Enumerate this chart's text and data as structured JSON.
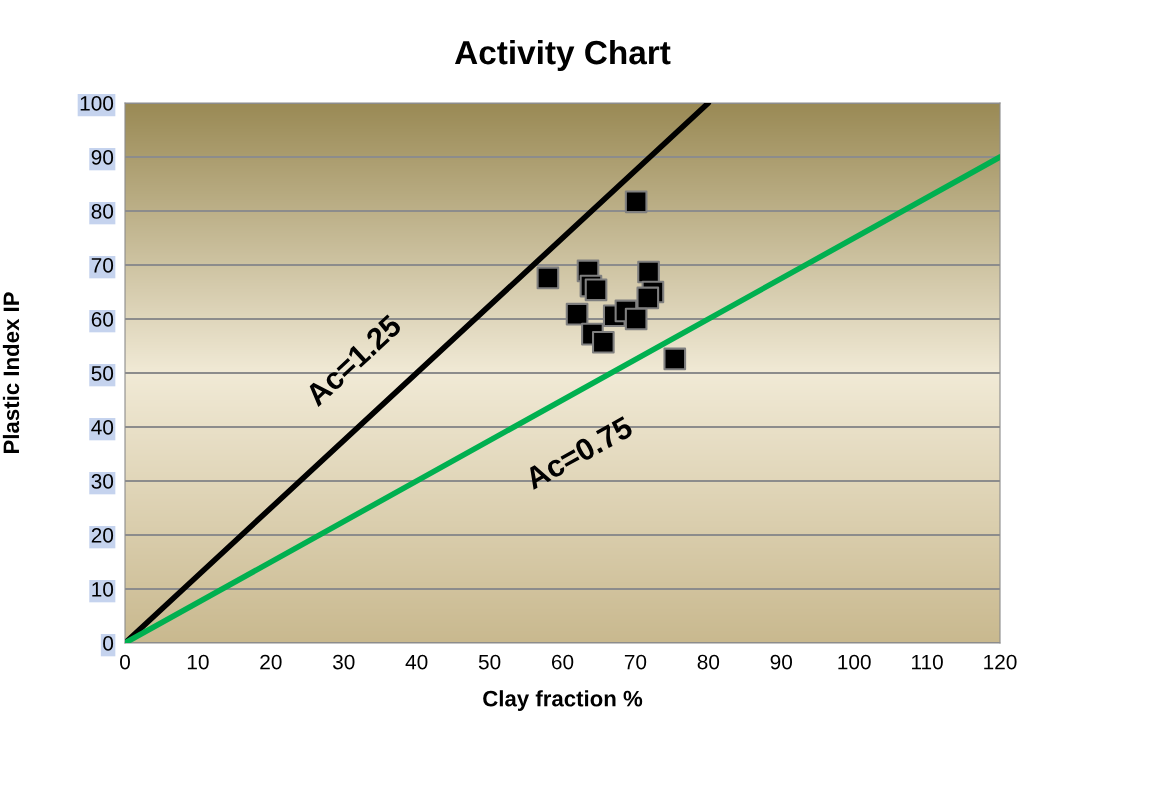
{
  "chart_data": {
    "type": "scatter",
    "title": "Activity Chart",
    "xlabel": "Clay fraction %",
    "ylabel": "Plastic Index IP",
    "xlim": [
      0,
      120
    ],
    "xticks": [
      0,
      10,
      20,
      30,
      40,
      50,
      60,
      70,
      80,
      90,
      100,
      110,
      120
    ],
    "ylim": [
      0,
      100
    ],
    "yticks": [
      0,
      10,
      20,
      30,
      40,
      50,
      60,
      70,
      80,
      90,
      100
    ],
    "grid": "y",
    "legend": false,
    "marker": "square",
    "series": [
      {
        "color": "#000000",
        "x": [
          70.1,
          58.0,
          63.5,
          63.9,
          64.6,
          71.8,
          72.4,
          71.7,
          62.0,
          67.1,
          68.7,
          70.1,
          64.1,
          65.6,
          75.4
        ],
        "values": [
          81.7,
          67.6,
          68.9,
          66.1,
          65.4,
          68.7,
          65.0,
          63.9,
          60.9,
          60.6,
          61.5,
          60.0,
          57.2,
          55.7,
          52.6
        ]
      },
      {
        "type": "line",
        "color": "#000000",
        "marker": "none",
        "x": [
          0,
          80
        ],
        "values": [
          0,
          100
        ]
      },
      {
        "type": "line",
        "color": "#00b050",
        "marker": "none",
        "x": [
          0,
          120
        ],
        "values": [
          0,
          90
        ]
      }
    ],
    "annotations": [
      "Ac=1.25",
      "Ac=0.75"
    ]
  }
}
